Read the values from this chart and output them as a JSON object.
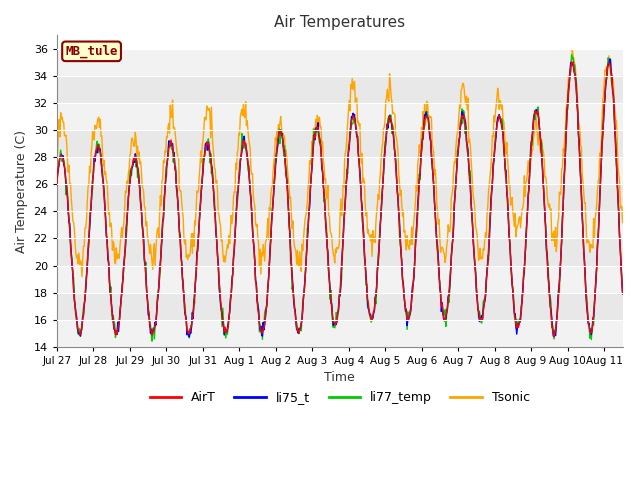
{
  "title": "Air Temperatures",
  "xlabel": "Time",
  "ylabel": "Air Temperature (C)",
  "station_label": "MB_tule",
  "ylim": [
    14,
    37
  ],
  "yticks": [
    14,
    16,
    18,
    20,
    22,
    24,
    26,
    28,
    30,
    32,
    34,
    36
  ],
  "xlim": [
    0,
    15.5
  ],
  "xtick_positions": [
    0,
    1,
    2,
    3,
    4,
    5,
    6,
    7,
    8,
    9,
    10,
    11,
    12,
    13,
    14,
    15
  ],
  "xtick_labels": [
    "Jul 27",
    "Jul 28",
    "Jul 29",
    "Jul 30",
    "Jul 31",
    "Aug 1",
    "Aug 2",
    "Aug 3",
    "Aug 4",
    "Aug 5",
    "Aug 6",
    "Aug 7",
    "Aug 8",
    "Aug 9",
    "Aug 10",
    "Aug 11"
  ],
  "legend_labels": [
    "AirT",
    "li75_t",
    "li77_temp",
    "Tsonic"
  ],
  "colors": {
    "AirT": "#ff0000",
    "li75_t": "#0000ff",
    "li77_temp": "#00cc00",
    "Tsonic": "#ffa500"
  },
  "background_color": "#ffffff",
  "band_light": "#f2f2f2",
  "band_dark": "#e8e8e8",
  "grid_color": "#ffffff",
  "title_fontsize": 11,
  "label_fontsize": 9,
  "tick_fontsize": 8,
  "xtick_fontsize": 7.5,
  "legend_fontsize": 9,
  "line_width": 1.0,
  "station_facecolor": "#ffffcc",
  "station_edgecolor": "#8b0000",
  "station_textcolor": "#8b0000",
  "daily_peaks": [
    28,
    29,
    28,
    29,
    29,
    29,
    30,
    30,
    31,
    31,
    31,
    31,
    31,
    31,
    35,
    35
  ],
  "daily_mins": [
    15,
    15,
    15,
    15,
    15,
    15,
    15,
    15,
    16,
    16,
    16,
    16,
    16,
    15,
    15,
    15
  ],
  "tsonic_peaks": [
    30.5,
    31,
    29,
    31,
    31.5,
    31.5,
    30.5,
    30.5,
    33,
    33,
    31.5,
    33,
    33,
    29,
    35,
    35
  ],
  "tsonic_mins": [
    20,
    20.5,
    20.5,
    20.5,
    20.5,
    20.5,
    20.5,
    20,
    21,
    21.5,
    21,
    20.5,
    20.5,
    24,
    21,
    21
  ]
}
